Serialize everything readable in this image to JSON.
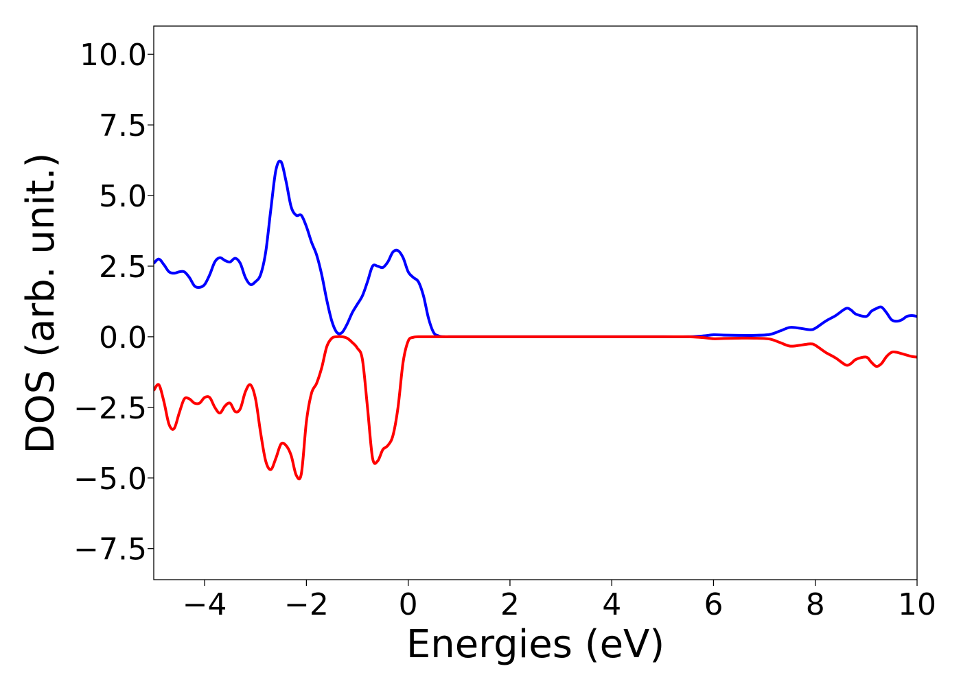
{
  "chart_data": {
    "type": "line",
    "title": "",
    "xlabel": "Energies (eV)",
    "ylabel": "DOS (arb. unit.)",
    "xlim": [
      -5,
      10
    ],
    "ylim": [
      -8.6,
      11.0
    ],
    "xticks": [
      -4,
      -2,
      0,
      2,
      4,
      6,
      8,
      10
    ],
    "xtick_labels": [
      "−4",
      "−2",
      "0",
      "2",
      "4",
      "6",
      "8",
      "10"
    ],
    "yticks": [
      10.0,
      7.5,
      5.0,
      2.5,
      0.0,
      -2.5,
      -5.0,
      -7.5
    ],
    "ytick_labels": [
      "10.0",
      "7.5",
      "5.0",
      "2.5",
      "0.0",
      "−2.5",
      "−5.0",
      "−7.5"
    ],
    "grid": false,
    "legend": "none",
    "series": [
      {
        "color": "#0000ff",
        "x": [
          -5.0,
          -4.9,
          -4.8,
          -4.7,
          -4.6,
          -4.5,
          -4.4,
          -4.3,
          -4.2,
          -4.1,
          -4.0,
          -3.9,
          -3.8,
          -3.7,
          -3.6,
          -3.5,
          -3.4,
          -3.3,
          -3.2,
          -3.1,
          -3.0,
          -2.9,
          -2.8,
          -2.7,
          -2.6,
          -2.5,
          -2.4,
          -2.3,
          -2.2,
          -2.1,
          -2.0,
          -1.9,
          -1.8,
          -1.7,
          -1.6,
          -1.5,
          -1.4,
          -1.3,
          -1.2,
          -1.1,
          -1.0,
          -0.9,
          -0.8,
          -0.7,
          -0.6,
          -0.5,
          -0.4,
          -0.3,
          -0.2,
          -0.1,
          0.0,
          0.1,
          0.2,
          0.3,
          0.4,
          0.5,
          0.6,
          0.7,
          0.8,
          0.9,
          1.0,
          1.1,
          1.2,
          1.3,
          1.4,
          1.5,
          1.6,
          1.7,
          1.8,
          2.0,
          3.0,
          4.0,
          5.0,
          5.5,
          5.8,
          6.0,
          6.2,
          6.5,
          6.8,
          7.1,
          7.3,
          7.5,
          7.7,
          7.9,
          8.0,
          8.2,
          8.4,
          8.6,
          8.7,
          8.8,
          9.0,
          9.1,
          9.2,
          9.3,
          9.4,
          9.5,
          9.6,
          9.7,
          9.8,
          9.9,
          10.0
        ],
        "y": [
          2.6,
          2.75,
          2.55,
          2.3,
          2.25,
          2.3,
          2.3,
          2.1,
          1.8,
          1.75,
          1.85,
          2.2,
          2.65,
          2.8,
          2.7,
          2.65,
          2.78,
          2.6,
          2.1,
          1.85,
          1.95,
          2.2,
          3.0,
          4.5,
          5.9,
          6.2,
          5.5,
          4.6,
          4.3,
          4.3,
          3.9,
          3.35,
          2.9,
          2.2,
          1.3,
          0.55,
          0.15,
          0.15,
          0.45,
          0.85,
          1.15,
          1.45,
          1.95,
          2.5,
          2.5,
          2.45,
          2.65,
          3.0,
          3.05,
          2.8,
          2.3,
          2.1,
          1.95,
          1.45,
          0.65,
          0.15,
          0.03,
          0.0,
          0.0,
          0.0,
          0.0,
          0.0,
          0.0,
          0.0,
          0.0,
          0.0,
          0.0,
          0.0,
          0.0,
          0.0,
          0.0,
          0.0,
          0.0,
          0.0,
          0.03,
          0.07,
          0.06,
          0.05,
          0.05,
          0.08,
          0.2,
          0.33,
          0.3,
          0.25,
          0.3,
          0.55,
          0.75,
          1.0,
          0.95,
          0.8,
          0.72,
          0.9,
          1.0,
          1.05,
          0.85,
          0.6,
          0.55,
          0.6,
          0.72,
          0.75,
          0.72
        ]
      },
      {
        "color": "#ff0000",
        "x": [
          -5.0,
          -4.9,
          -4.8,
          -4.7,
          -4.6,
          -4.5,
          -4.4,
          -4.3,
          -4.2,
          -4.1,
          -4.0,
          -3.9,
          -3.8,
          -3.7,
          -3.6,
          -3.5,
          -3.4,
          -3.3,
          -3.2,
          -3.1,
          -3.0,
          -2.9,
          -2.8,
          -2.7,
          -2.6,
          -2.5,
          -2.4,
          -2.3,
          -2.2,
          -2.1,
          -2.0,
          -1.9,
          -1.8,
          -1.7,
          -1.6,
          -1.5,
          -1.4,
          -1.3,
          -1.2,
          -1.1,
          -1.0,
          -0.9,
          -0.8,
          -0.7,
          -0.6,
          -0.5,
          -0.4,
          -0.3,
          -0.2,
          -0.1,
          0.0,
          0.1,
          0.2,
          0.3,
          0.4,
          0.5,
          0.6,
          0.7,
          0.8,
          0.9,
          1.0,
          1.1,
          1.2,
          1.3,
          1.4,
          1.5,
          1.6,
          1.7,
          1.8,
          2.0,
          3.0,
          4.0,
          5.0,
          5.5,
          5.8,
          6.0,
          6.2,
          6.5,
          6.8,
          7.1,
          7.3,
          7.5,
          7.7,
          7.9,
          8.0,
          8.2,
          8.4,
          8.6,
          8.7,
          8.8,
          9.0,
          9.1,
          9.2,
          9.3,
          9.4,
          9.5,
          9.6,
          9.7,
          9.8,
          9.9,
          10.0
        ],
        "y": [
          -1.9,
          -1.7,
          -2.3,
          -3.1,
          -3.25,
          -2.7,
          -2.2,
          -2.2,
          -2.35,
          -2.35,
          -2.15,
          -2.15,
          -2.5,
          -2.7,
          -2.45,
          -2.35,
          -2.65,
          -2.55,
          -1.95,
          -1.7,
          -2.2,
          -3.4,
          -4.4,
          -4.7,
          -4.3,
          -3.8,
          -3.85,
          -4.2,
          -4.9,
          -4.85,
          -3.0,
          -2.0,
          -1.65,
          -1.1,
          -0.35,
          -0.05,
          0.0,
          0.0,
          -0.05,
          -0.2,
          -0.4,
          -0.8,
          -2.5,
          -4.3,
          -4.4,
          -4.0,
          -3.85,
          -3.5,
          -2.5,
          -0.9,
          -0.15,
          -0.02,
          0.0,
          0.0,
          0.0,
          0.0,
          0.0,
          0.0,
          0.0,
          0.0,
          0.0,
          0.0,
          0.0,
          0.0,
          0.0,
          0.0,
          0.0,
          0.0,
          0.0,
          0.0,
          0.0,
          0.0,
          0.0,
          0.0,
          -0.03,
          -0.07,
          -0.06,
          -0.05,
          -0.05,
          -0.08,
          -0.2,
          -0.33,
          -0.3,
          -0.25,
          -0.3,
          -0.55,
          -0.75,
          -1.0,
          -0.95,
          -0.8,
          -0.72,
          -0.9,
          -1.05,
          -0.95,
          -0.7,
          -0.55,
          -0.55,
          -0.6,
          -0.65,
          -0.7,
          -0.72
        ]
      }
    ]
  }
}
